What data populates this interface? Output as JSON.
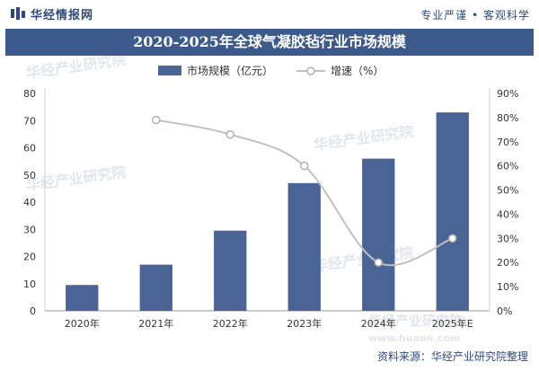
{
  "header": {
    "logo_text": "华经情报网",
    "tagline": "专业严谨 • 客观科学"
  },
  "title": "2020-2025年全球气凝胶毡行业市场规模",
  "footer": {
    "source": "资料来源：华经产业研究院整理"
  },
  "watermarks": [
    "华经产业研究院",
    "华经产业研究院",
    "华经产业研究院",
    "华经产业研究院",
    "华经产业研究院",
    "www.huaon.com"
  ],
  "colors": {
    "bar": "#4a6496",
    "line": "#c0c0c0",
    "header": "#3d5a8c"
  },
  "chart_data": {
    "type": "bar+line",
    "categories": [
      "2020年",
      "2021年",
      "2022年",
      "2023年",
      "2024年",
      "2025年E"
    ],
    "series": [
      {
        "name": "市场规模（亿元）",
        "type": "bar",
        "axis": "left",
        "values": [
          9.5,
          17,
          29.5,
          47,
          56,
          73
        ]
      },
      {
        "name": "增速（%）",
        "type": "line",
        "axis": "right",
        "values": [
          null,
          79,
          73,
          60,
          20,
          30
        ]
      }
    ],
    "yleft": {
      "ylim": [
        0,
        80
      ],
      "ticks": [
        "0",
        "10",
        "20",
        "30",
        "40",
        "50",
        "60",
        "70",
        "80"
      ]
    },
    "yright": {
      "ylim": [
        0,
        90
      ],
      "ticks": [
        "0%",
        "10%",
        "20%",
        "30%",
        "40%",
        "50%",
        "60%",
        "70%",
        "80%",
        "90%"
      ]
    },
    "legend_position": "top-center",
    "grid": false
  }
}
